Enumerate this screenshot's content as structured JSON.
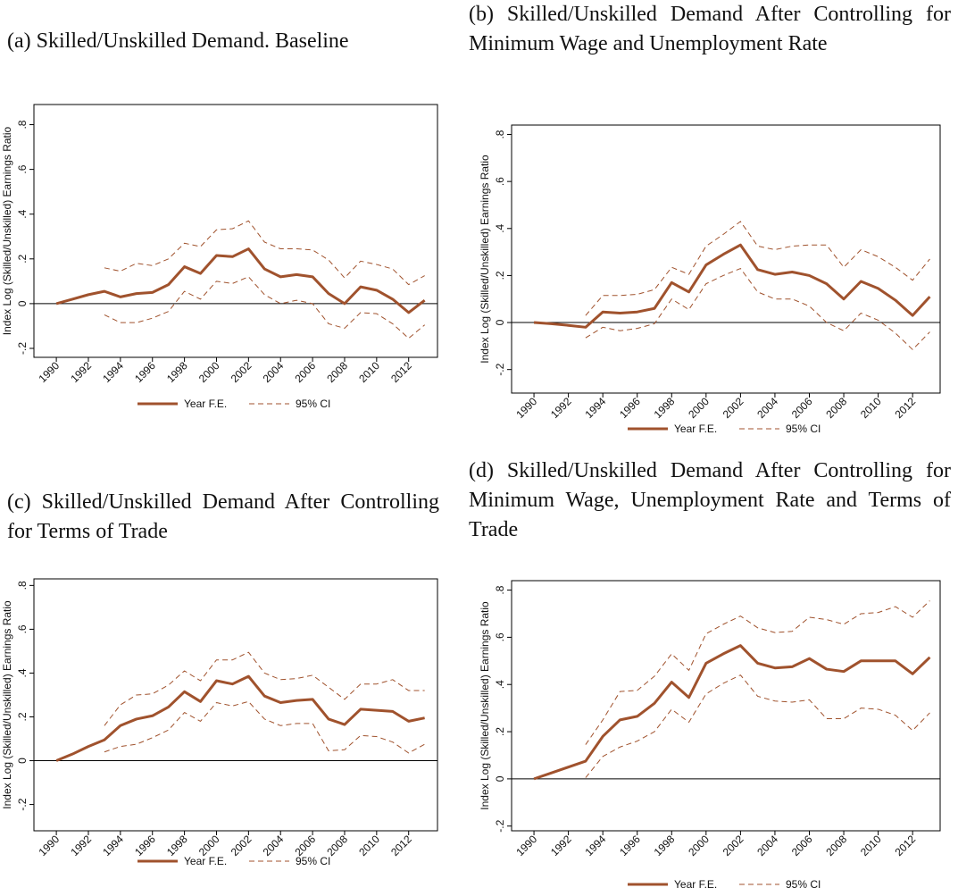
{
  "chart_data": [
    {
      "type": "line",
      "title": "(a) Skilled/Unskilled Demand. Baseline",
      "ylabel": "Index Log (Skilled/Unskilled) Earnings Ratio",
      "x": [
        1990,
        1991,
        1992,
        1993,
        1994,
        1995,
        1996,
        1997,
        1998,
        1999,
        2000,
        2001,
        2002,
        2003,
        2004,
        2005,
        2006,
        2007,
        2008,
        2009,
        2010,
        2011,
        2012,
        2013
      ],
      "xlim": [
        1988.6,
        2013.8
      ],
      "xticks": [
        1990,
        1992,
        1994,
        1996,
        1998,
        2000,
        2002,
        2004,
        2006,
        2008,
        2010,
        2012
      ],
      "ylim": [
        -0.24,
        0.89
      ],
      "yticks": [
        {
          "value": -0.2,
          "label": "-.2"
        },
        0,
        {
          "value": 0.2,
          "label": ".2"
        },
        {
          "value": 0.4,
          "label": ".4"
        },
        {
          "value": 0.6,
          "label": ".6"
        },
        {
          "value": 0.8,
          "label": ".8"
        }
      ],
      "hline": 0,
      "series": [
        {
          "name": "Year F.E.",
          "color": "#a0522d",
          "values": [
            0,
            0.02,
            0.04,
            0.055,
            0.03,
            0.045,
            0.05,
            0.085,
            0.165,
            0.135,
            0.215,
            0.21,
            0.245,
            0.155,
            0.12,
            0.13,
            0.12,
            0.045,
            0,
            0.075,
            0.06,
            0.02,
            -0.04,
            0.015
          ]
        },
        {
          "name": "95% CI",
          "color": "#a0522d",
          "upper": [
            null,
            null,
            null,
            0.16,
            0.145,
            0.18,
            0.17,
            0.2,
            0.27,
            0.255,
            0.33,
            0.335,
            0.37,
            0.275,
            0.245,
            0.245,
            0.24,
            0.195,
            0.115,
            0.19,
            0.175,
            0.155,
            0.085,
            0.125
          ],
          "lower": [
            null,
            null,
            null,
            -0.05,
            -0.085,
            -0.085,
            -0.065,
            -0.035,
            0.055,
            0.02,
            0.1,
            0.09,
            0.12,
            0.04,
            0,
            0.015,
            0,
            -0.09,
            -0.11,
            -0.04,
            -0.045,
            -0.09,
            -0.155,
            -0.095
          ]
        }
      ]
    },
    {
      "type": "line",
      "title": "(b) Skilled/Unskilled Demand After Controlling for Minimum Wage and Unemployment Rate",
      "ylabel": "Index Log (Skilled/Unskilled) Earnings Ratio",
      "x": [
        1990,
        1991,
        1992,
        1993,
        1994,
        1995,
        1996,
        1997,
        1998,
        1999,
        2000,
        2001,
        2002,
        2003,
        2004,
        2005,
        2006,
        2007,
        2008,
        2009,
        2010,
        2011,
        2012,
        2013
      ],
      "xlim": [
        1988.7,
        2013.6
      ],
      "xticks": [
        1990,
        1992,
        1994,
        1996,
        1998,
        2000,
        2002,
        2004,
        2006,
        2008,
        2010,
        2012
      ],
      "ylim": [
        -0.3,
        0.84
      ],
      "yticks": [
        {
          "value": -0.2,
          "label": "-.2"
        },
        0,
        {
          "value": 0.2,
          "label": ".2"
        },
        {
          "value": 0.4,
          "label": ".4"
        },
        {
          "value": 0.6,
          "label": ".6"
        },
        {
          "value": 0.8,
          "label": ".8"
        }
      ],
      "hline": 0,
      "series": [
        {
          "name": "Year F.E.",
          "color": "#a0522d",
          "values": [
            0,
            -0.005,
            -0.012,
            -0.02,
            0.045,
            0.04,
            0.045,
            0.06,
            0.17,
            0.13,
            0.245,
            0.29,
            0.33,
            0.225,
            0.205,
            0.215,
            0.2,
            0.165,
            0.1,
            0.175,
            0.145,
            0.095,
            0.03,
            0.11
          ]
        },
        {
          "name": "95% CI",
          "color": "#a0522d",
          "upper": [
            null,
            null,
            null,
            0.03,
            0.115,
            0.115,
            0.12,
            0.14,
            0.235,
            0.205,
            0.325,
            0.375,
            0.43,
            0.325,
            0.31,
            0.325,
            0.33,
            0.33,
            0.235,
            0.31,
            0.28,
            0.235,
            0.18,
            0.27
          ],
          "lower": [
            null,
            null,
            null,
            -0.065,
            -0.02,
            -0.035,
            -0.025,
            -0.005,
            0.1,
            0.055,
            0.165,
            0.2,
            0.23,
            0.13,
            0.1,
            0.1,
            0.07,
            0,
            -0.035,
            0.04,
            0.01,
            -0.045,
            -0.115,
            -0.04
          ]
        }
      ]
    },
    {
      "type": "line",
      "title": "(c) Skilled/Unskilled Demand After Controlling for Terms of Trade",
      "ylabel": "Index Log (Skilled/Unskilled) Earnings Ratio",
      "x": [
        1990,
        1991,
        1992,
        1993,
        1994,
        1995,
        1996,
        1997,
        1998,
        1999,
        2000,
        2001,
        2002,
        2003,
        2004,
        2005,
        2006,
        2007,
        2008,
        2009,
        2010,
        2011,
        2012,
        2013
      ],
      "xlim": [
        1988.6,
        2013.8
      ],
      "xticks": [
        1990,
        1992,
        1994,
        1996,
        1998,
        2000,
        2002,
        2004,
        2006,
        2008,
        2010,
        2012
      ],
      "ylim": [
        -0.32,
        0.83
      ],
      "yticks": [
        {
          "value": -0.2,
          "label": "-.2"
        },
        0,
        {
          "value": 0.2,
          "label": ".2"
        },
        {
          "value": 0.4,
          "label": ".4"
        },
        {
          "value": 0.6,
          "label": ".6"
        },
        {
          "value": 0.8,
          "label": ".8"
        }
      ],
      "hline": 0,
      "series": [
        {
          "name": "Year F.E.",
          "color": "#a0522d",
          "values": [
            0,
            0.03,
            0.065,
            0.095,
            0.16,
            0.19,
            0.205,
            0.245,
            0.315,
            0.27,
            0.365,
            0.35,
            0.385,
            0.295,
            0.265,
            0.275,
            0.28,
            0.19,
            0.165,
            0.235,
            0.23,
            0.225,
            0.18,
            0.195
          ]
        },
        {
          "name": "95% CI",
          "color": "#a0522d",
          "upper": [
            null,
            null,
            null,
            0.16,
            0.255,
            0.3,
            0.305,
            0.345,
            0.41,
            0.365,
            0.46,
            0.46,
            0.495,
            0.4,
            0.37,
            0.375,
            0.39,
            0.335,
            0.28,
            0.35,
            0.35,
            0.37,
            0.32,
            0.32
          ],
          "lower": [
            null,
            null,
            null,
            0.04,
            0.065,
            0.075,
            0.105,
            0.14,
            0.22,
            0.18,
            0.265,
            0.25,
            0.27,
            0.19,
            0.16,
            0.17,
            0.17,
            0.045,
            0.05,
            0.115,
            0.11,
            0.085,
            0.035,
            0.075
          ]
        }
      ]
    },
    {
      "type": "line",
      "title": "(d) Skilled/Unskilled Demand After Controlling for Minimum Wage, Unemployment Rate and Terms of Trade",
      "ylabel": "Index Log (Skilled/Unskilled) Earnings Ratio",
      "x": [
        1990,
        1991,
        1992,
        1993,
        1994,
        1995,
        1996,
        1997,
        1998,
        1999,
        2000,
        2001,
        2002,
        2003,
        2004,
        2005,
        2006,
        2007,
        2008,
        2009,
        2010,
        2011,
        2012,
        2013
      ],
      "xlim": [
        1988.7,
        2013.6
      ],
      "xticks": [
        1990,
        1992,
        1994,
        1996,
        1998,
        2000,
        2002,
        2004,
        2006,
        2008,
        2010,
        2012
      ],
      "ylim": [
        -0.22,
        0.84
      ],
      "yticks": [
        {
          "value": -0.2,
          "label": "-.2"
        },
        0,
        {
          "value": 0.2,
          "label": ".2"
        },
        {
          "value": 0.4,
          "label": ".4"
        },
        {
          "value": 0.6,
          "label": ".6"
        },
        {
          "value": 0.8,
          "label": ".8"
        }
      ],
      "hline": 0,
      "series": [
        {
          "name": "Year F.E.",
          "color": "#a0522d",
          "values": [
            0,
            0.025,
            0.05,
            0.075,
            0.18,
            0.25,
            0.265,
            0.32,
            0.41,
            0.345,
            0.49,
            0.53,
            0.565,
            0.49,
            0.47,
            0.475,
            0.51,
            0.465,
            0.455,
            0.5,
            0.5,
            0.5,
            0.445,
            0.515
          ]
        },
        {
          "name": "95% CI",
          "color": "#a0522d",
          "upper": [
            null,
            null,
            null,
            0.145,
            0.25,
            0.37,
            0.375,
            0.435,
            0.53,
            0.46,
            0.615,
            0.655,
            0.69,
            0.64,
            0.62,
            0.625,
            0.685,
            0.675,
            0.655,
            0.7,
            0.705,
            0.73,
            0.685,
            0.755
          ],
          "lower": [
            null,
            null,
            null,
            0.005,
            0.095,
            0.135,
            0.16,
            0.2,
            0.295,
            0.24,
            0.36,
            0.405,
            0.44,
            0.35,
            0.33,
            0.325,
            0.335,
            0.255,
            0.255,
            0.3,
            0.295,
            0.27,
            0.205,
            0.28
          ]
        }
      ]
    }
  ]
}
